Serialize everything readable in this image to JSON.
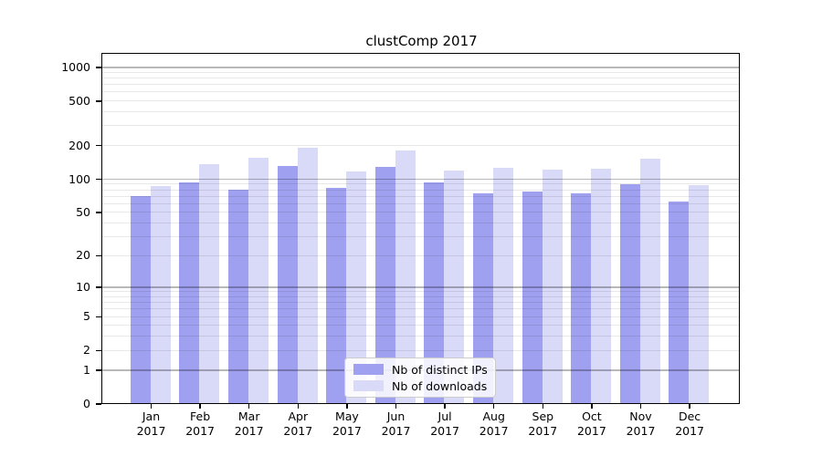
{
  "chart_data": {
    "type": "bar",
    "title": "clustComp 2017",
    "categories": [
      "Jan",
      "Feb",
      "Mar",
      "Apr",
      "May",
      "Jun",
      "Jul",
      "Aug",
      "Sep",
      "Oct",
      "Nov",
      "Dec"
    ],
    "year": "2017",
    "series": [
      {
        "name": "Nb of distinct IPs",
        "color": "#a0a0f0",
        "values": [
          70,
          93,
          80,
          130,
          83,
          128,
          92,
          73,
          77,
          73,
          89,
          62
        ]
      },
      {
        "name": "Nb of downloads",
        "color": "#d9d9f8",
        "values": [
          85,
          135,
          155,
          190,
          115,
          180,
          118,
          126,
          121,
          123,
          152,
          87
        ]
      }
    ],
    "yscale": "log1p",
    "yticks": [
      0,
      1,
      2,
      5,
      10,
      20,
      50,
      100,
      200,
      500,
      1000
    ],
    "ylim": [
      0,
      1300
    ],
    "xlabel": "",
    "ylabel": "",
    "grid": true,
    "legend_position": "bottom-center"
  }
}
